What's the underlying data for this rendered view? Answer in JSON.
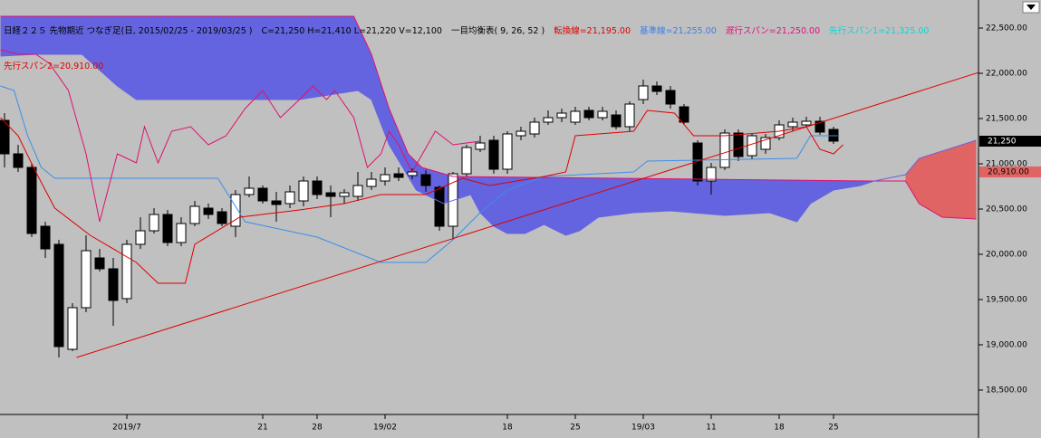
{
  "header": {
    "parts": [
      {
        "text": "日経２２５ 先物期近 つなぎ足(日, 2015/02/25 - 2019/03/25 )",
        "color": "#000000"
      },
      {
        "text": "C=21,250 H=21,410 L=21,220 V=12,100",
        "color": "#000000"
      },
      {
        "text": "一目均衡表( 9, 26, 52 )",
        "color": "#000000"
      },
      {
        "text": "転換線=21,195.00",
        "color": "#e00000"
      },
      {
        "text": "基準線=21,255.00",
        "color": "#3a7ee8"
      },
      {
        "text": "遅行スパン=21,250.00",
        "color": "#e0107a"
      },
      {
        "text": "先行スパン1=21,325.00",
        "color": "#00d8d8"
      }
    ],
    "second": {
      "text": "先行スパン2=20,910.00",
      "color": "#e00000"
    }
  },
  "chart_data": {
    "type": "candlestick",
    "ylim": [
      18230,
      22810
    ],
    "yticks": [
      {
        "value": 18500,
        "label": "18,500.00"
      },
      {
        "value": 19000,
        "label": "19,000.00"
      },
      {
        "value": 19500,
        "label": "19,500.00"
      },
      {
        "value": 20000,
        "label": "20,000.00"
      },
      {
        "value": 20500,
        "label": "20,500.00"
      },
      {
        "value": 21000,
        "label": "21,000.00"
      },
      {
        "value": 21500,
        "label": "21,500.00"
      },
      {
        "value": 22000,
        "label": "22,000.00"
      },
      {
        "value": 22500,
        "label": "22,500.00"
      }
    ],
    "xticks": [
      {
        "value": 9,
        "label": "2019/7"
      },
      {
        "value": 19,
        "label": "21"
      },
      {
        "value": 23,
        "label": "28"
      },
      {
        "value": 28,
        "label": "19/02"
      },
      {
        "value": 37,
        "label": "18"
      },
      {
        "value": 42,
        "label": "25"
      },
      {
        "value": 47,
        "label": "19/03"
      },
      {
        "value": 52,
        "label": "11"
      },
      {
        "value": 57,
        "label": "18"
      },
      {
        "value": 61,
        "label": "25"
      }
    ],
    "up_color": "#ffffff",
    "down_color": "#000000",
    "candles": {
      "open": [
        21480,
        21110,
        20960,
        20310,
        20110,
        18950,
        19410,
        19960,
        19840,
        19510,
        20110,
        20260,
        20440,
        20130,
        20340,
        20510,
        20470,
        20310,
        20660,
        20730,
        20590,
        20560,
        20590,
        20810,
        20680,
        20640,
        20640,
        20750,
        20810,
        20890,
        20870,
        20880,
        20740,
        20310,
        20890,
        21160,
        21260,
        20940,
        21310,
        21330,
        21460,
        21510,
        21460,
        21590,
        21510,
        21540,
        21410,
        21710,
        21860,
        21810,
        21630,
        21230,
        20810,
        20960,
        21340,
        21090,
        21160,
        21290,
        21410,
        21430,
        21470,
        21380
      ],
      "high": [
        21560,
        21210,
        21010,
        20360,
        20160,
        19460,
        20210,
        20060,
        19960,
        20160,
        20410,
        20510,
        20490,
        20410,
        20590,
        20560,
        20510,
        20710,
        20860,
        20760,
        20690,
        20760,
        20860,
        20860,
        20760,
        20720,
        20910,
        20910,
        20960,
        20960,
        20950,
        20930,
        20760,
        20910,
        21210,
        21310,
        21310,
        21360,
        21410,
        21510,
        21590,
        21610,
        21630,
        21630,
        21630,
        21590,
        21690,
        21930,
        21910,
        21860,
        21660,
        21260,
        21010,
        21380,
        21380,
        21340,
        21330,
        21480,
        21510,
        21520,
        21520,
        21410
      ],
      "low": [
        20960,
        20910,
        20190,
        19960,
        18860,
        18930,
        19360,
        19810,
        19210,
        19460,
        20060,
        20230,
        20090,
        20090,
        20310,
        20390,
        20310,
        20190,
        20630,
        20560,
        20360,
        20510,
        20530,
        20610,
        20410,
        20560,
        20590,
        20710,
        20760,
        20810,
        20830,
        20690,
        20260,
        20160,
        20860,
        21130,
        20890,
        20890,
        21260,
        21290,
        21430,
        21460,
        21430,
        21480,
        21480,
        21380,
        21360,
        21660,
        21760,
        21610,
        21430,
        20760,
        20660,
        20930,
        21030,
        21050,
        21110,
        21260,
        21360,
        21400,
        21320,
        21220
      ],
      "close": [
        21110,
        20960,
        20230,
        20060,
        18980,
        19410,
        20040,
        19840,
        19490,
        20110,
        20260,
        20440,
        20130,
        20340,
        20530,
        20440,
        20340,
        20660,
        20730,
        20590,
        20550,
        20690,
        20810,
        20660,
        20640,
        20680,
        20760,
        20830,
        20880,
        20850,
        20910,
        20760,
        20310,
        20890,
        21180,
        21230,
        20940,
        21330,
        21360,
        21460,
        21510,
        21560,
        21580,
        21510,
        21580,
        21410,
        21660,
        21860,
        21800,
        21660,
        21460,
        20810,
        20960,
        21340,
        21080,
        21310,
        21290,
        21430,
        21460,
        21470,
        21350,
        21250
      ]
    },
    "cloud_colors": {
      "above": "#6464e0",
      "below": "#e06464"
    },
    "lines": {
      "span2": {
        "color": "#e0106e",
        "x": [
          -0.3,
          25.7,
          27,
          28.3,
          29.7,
          30.7,
          33,
          63.7,
          66.3,
          67.3,
          69,
          71.5
        ],
        "values": [
          22630,
          22630,
          22210,
          21610,
          21110,
          20960,
          20860,
          20810,
          20810,
          20560,
          20410,
          20390
        ]
      },
      "span1": {
        "color": "#6464e0",
        "x": [
          -0.3,
          2.3,
          5.7,
          8.3,
          9.7,
          21.7,
          26,
          27,
          28.3,
          29.3,
          30.3,
          32.3,
          34.3,
          35,
          36,
          37,
          38.3,
          39.7,
          41.3,
          42.3,
          43.7,
          46.3,
          49,
          53,
          56.3,
          58.3,
          59.3,
          61,
          63,
          64,
          66.3,
          67.3,
          71.5
        ],
        "values": [
          22190,
          22210,
          22210,
          21860,
          21710,
          21710,
          21810,
          21710,
          21210,
          20960,
          20710,
          20560,
          20660,
          20460,
          20310,
          20230,
          20230,
          20330,
          20210,
          20260,
          20410,
          20460,
          20480,
          20430,
          20460,
          20360,
          20560,
          20710,
          20760,
          20810,
          20880,
          21060,
          21260
        ]
      },
      "kijun": {
        "color": "#3a8ee8",
        "x": [
          -0.3,
          0.7,
          1.7,
          2.7,
          3.7,
          15.7,
          17.7,
          23,
          27.7,
          31,
          33,
          35,
          37,
          39.7,
          46.3,
          47.3,
          58.3,
          59.3,
          61.3
        ],
        "values": [
          21860,
          21810,
          21310,
          20960,
          20840,
          20840,
          20360,
          20190,
          19910,
          19910,
          20160,
          20460,
          20710,
          20860,
          20910,
          21030,
          21060,
          21310,
          21310
        ]
      },
      "tenkan": {
        "color": "#e00000",
        "x": [
          -0.3,
          1,
          2.3,
          3.7,
          6.3,
          9.7,
          11.3,
          13.3,
          14,
          17.3,
          21.7,
          25,
          27.7,
          31,
          33.7,
          35.7,
          39.7,
          41.3,
          42,
          46.3,
          47.3,
          49.3,
          50.7,
          53,
          57,
          59,
          60,
          61,
          61.7
        ],
        "values": [
          21510,
          21310,
          20910,
          20510,
          20210,
          19910,
          19680,
          19680,
          20110,
          20410,
          20490,
          20560,
          20660,
          20660,
          20840,
          20760,
          20860,
          20910,
          21310,
          21360,
          21590,
          21560,
          21310,
          21310,
          21360,
          21410,
          21160,
          21110,
          21210
        ]
      },
      "chikou": {
        "color": "#e0106e",
        "x": [
          -0.3,
          1,
          2.3,
          3.3,
          4.7,
          6,
          7,
          8.3,
          9.7,
          10.3,
          11.3,
          12.3,
          13.7,
          15,
          16.3,
          17.7,
          19,
          20.3,
          21.7,
          22.7,
          23.7,
          24.3,
          25.7,
          26.7,
          27.7,
          28.3,
          29,
          30,
          31.7,
          33,
          35
        ],
        "values": [
          22260,
          22210,
          22210,
          22110,
          21810,
          21110,
          20360,
          21110,
          21010,
          21410,
          21010,
          21360,
          21410,
          21210,
          21310,
          21610,
          21810,
          21510,
          21710,
          21860,
          21710,
          21810,
          21510,
          20960,
          21110,
          21360,
          21210,
          20910,
          21360,
          21210,
          21250
        ]
      },
      "trend": {
        "color": "#e00000",
        "x": [
          5.3,
          71.7
        ],
        "values": [
          18860,
          22010
        ]
      }
    },
    "tags": [
      {
        "value": 21250,
        "label": "21,250",
        "bg": "#000000",
        "fg": "#ffffff"
      },
      {
        "value": 20910,
        "label": "20,910.00",
        "bg": "#e06464",
        "fg": "#000000"
      }
    ]
  }
}
